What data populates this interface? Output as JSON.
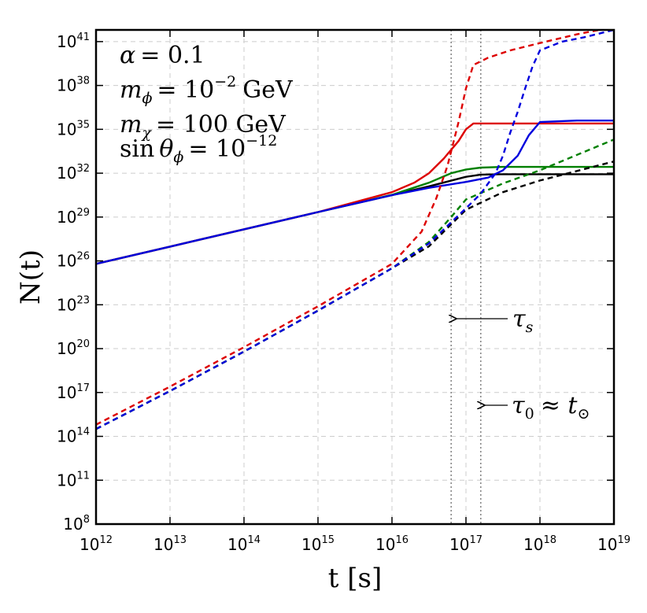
{
  "chart_data": {
    "type": "line",
    "title": "",
    "xlabel": "t [s]",
    "ylabel": "N(t)",
    "xscale": "log",
    "yscale": "log",
    "xlim_log10": [
      12,
      19
    ],
    "ylim_log10": [
      8,
      41.8
    ],
    "grid": true,
    "x_ticks": [
      {
        "base": "10",
        "exp": "12",
        "v": 12
      },
      {
        "base": "10",
        "exp": "13",
        "v": 13
      },
      {
        "base": "10",
        "exp": "14",
        "v": 14
      },
      {
        "base": "10",
        "exp": "15",
        "v": 15
      },
      {
        "base": "10",
        "exp": "16",
        "v": 16
      },
      {
        "base": "10",
        "exp": "17",
        "v": 17
      },
      {
        "base": "10",
        "exp": "18",
        "v": 18
      },
      {
        "base": "10",
        "exp": "19",
        "v": 19
      }
    ],
    "y_ticks": [
      {
        "base": "10",
        "exp": "8",
        "v": 8
      },
      {
        "base": "10",
        "exp": "11",
        "v": 11
      },
      {
        "base": "10",
        "exp": "14",
        "v": 14
      },
      {
        "base": "10",
        "exp": "17",
        "v": 17
      },
      {
        "base": "10",
        "exp": "20",
        "v": 20
      },
      {
        "base": "10",
        "exp": "23",
        "v": 23
      },
      {
        "base": "10",
        "exp": "26",
        "v": 26
      },
      {
        "base": "10",
        "exp": "29",
        "v": 29
      },
      {
        "base": "10",
        "exp": "32",
        "v": 32
      },
      {
        "base": "10",
        "exp": "35",
        "v": 35
      },
      {
        "base": "10",
        "exp": "38",
        "v": 38
      },
      {
        "base": "10",
        "exp": "41",
        "v": 41
      }
    ],
    "vlines_log10t": [
      16.8,
      17.2
    ],
    "series": [
      {
        "name": "black solid",
        "color": "#000000",
        "dash": "solid",
        "log10t": [
          12,
          13,
          14,
          15,
          16,
          16.5,
          17,
          17.2,
          17.5,
          18,
          19
        ],
        "log10N": [
          25.8,
          26.98,
          28.16,
          29.34,
          30.5,
          31.1,
          31.75,
          31.9,
          31.93,
          31.93,
          31.93
        ]
      },
      {
        "name": "green solid",
        "color": "#008000",
        "dash": "solid",
        "log10t": [
          12,
          13,
          14,
          15,
          16,
          16.5,
          16.8,
          17,
          17.2,
          17.5,
          18,
          19
        ],
        "log10N": [
          25.8,
          26.98,
          28.16,
          29.34,
          30.52,
          31.35,
          32.0,
          32.25,
          32.38,
          32.43,
          32.43,
          32.43
        ]
      },
      {
        "name": "red solid",
        "color": "#dd0000",
        "dash": "solid",
        "log10t": [
          12,
          13,
          14,
          15,
          16,
          16.3,
          16.5,
          16.7,
          16.9,
          17.0,
          17.1,
          17.5,
          18,
          19
        ],
        "log10N": [
          25.8,
          26.98,
          28.16,
          29.34,
          30.7,
          31.35,
          32.0,
          33.0,
          34.2,
          35.0,
          35.4,
          35.4,
          35.4,
          35.4
        ]
      },
      {
        "name": "blue solid",
        "color": "#0000dd",
        "dash": "solid",
        "log10t": [
          12,
          13,
          14,
          15,
          16,
          16.5,
          17,
          17.3,
          17.5,
          17.7,
          17.85,
          18.0,
          18.5,
          19
        ],
        "log10N": [
          25.8,
          26.98,
          28.16,
          29.34,
          30.5,
          31.0,
          31.4,
          31.7,
          32.2,
          33.2,
          34.6,
          35.5,
          35.6,
          35.6
        ]
      },
      {
        "name": "black dashed",
        "color": "#000000",
        "dash": "dashed",
        "log10t": [
          12,
          13,
          14,
          15,
          16,
          16.5,
          17,
          17.5,
          18,
          19
        ],
        "log10N": [
          14.5,
          17.1,
          19.8,
          22.6,
          25.5,
          27.0,
          29.5,
          30.7,
          31.5,
          32.8
        ]
      },
      {
        "name": "green dashed",
        "color": "#008000",
        "dash": "dashed",
        "log10t": [
          12,
          13,
          14,
          15,
          16,
          16.5,
          16.8,
          17,
          17.5,
          18,
          19
        ],
        "log10N": [
          14.5,
          17.1,
          19.8,
          22.6,
          25.5,
          27.3,
          29.0,
          30.2,
          31.3,
          32.2,
          34.3
        ]
      },
      {
        "name": "red dashed",
        "color": "#dd0000",
        "dash": "dashed",
        "log10t": [
          12,
          13,
          14,
          15,
          16,
          16.4,
          16.6,
          16.75,
          16.9,
          17.0,
          17.1,
          17.3,
          17.6,
          18,
          18.5,
          19
        ],
        "log10N": [
          14.8,
          17.4,
          20.1,
          22.9,
          25.8,
          28.0,
          30.3,
          32.5,
          35.5,
          37.8,
          39.4,
          39.9,
          40.4,
          40.9,
          41.5,
          42.0
        ]
      },
      {
        "name": "blue dashed",
        "color": "#0000dd",
        "dash": "dashed",
        "log10t": [
          12,
          13,
          14,
          15,
          16,
          16.5,
          17,
          17.2,
          17.4,
          17.5,
          17.6,
          17.7,
          17.8,
          17.9,
          18.0,
          18.3,
          18.6,
          19
        ],
        "log10N": [
          14.5,
          17.1,
          19.8,
          22.6,
          25.5,
          27.2,
          29.6,
          30.6,
          32.0,
          33.2,
          34.8,
          36.2,
          37.8,
          39.3,
          40.4,
          41.0,
          41.3,
          41.8
        ]
      }
    ],
    "annotations": {
      "alpha_lhs": "α",
      "alpha_rhs": "= 0.1",
      "mphi_lhs": "m",
      "mphi_sub": "ϕ",
      "mphi_rhs": "= 10",
      "mphi_exp": "−2",
      "mphi_unit": "GeV",
      "mchi_lhs": "m",
      "mchi_sub": "χ",
      "mchi_rhs": "= 100 GeV",
      "sin_fn": "sin",
      "sin_var": "θ",
      "sin_sub": "ϕ",
      "sin_rhs": "= 10",
      "sin_exp": "−12",
      "tau_s": "τ",
      "tau_s_sub": "s",
      "tau_0": "τ",
      "tau_0_sub": "0",
      "tau_0_rhs": "≈ t",
      "tau_0_rhs_sub": "⊙"
    }
  }
}
